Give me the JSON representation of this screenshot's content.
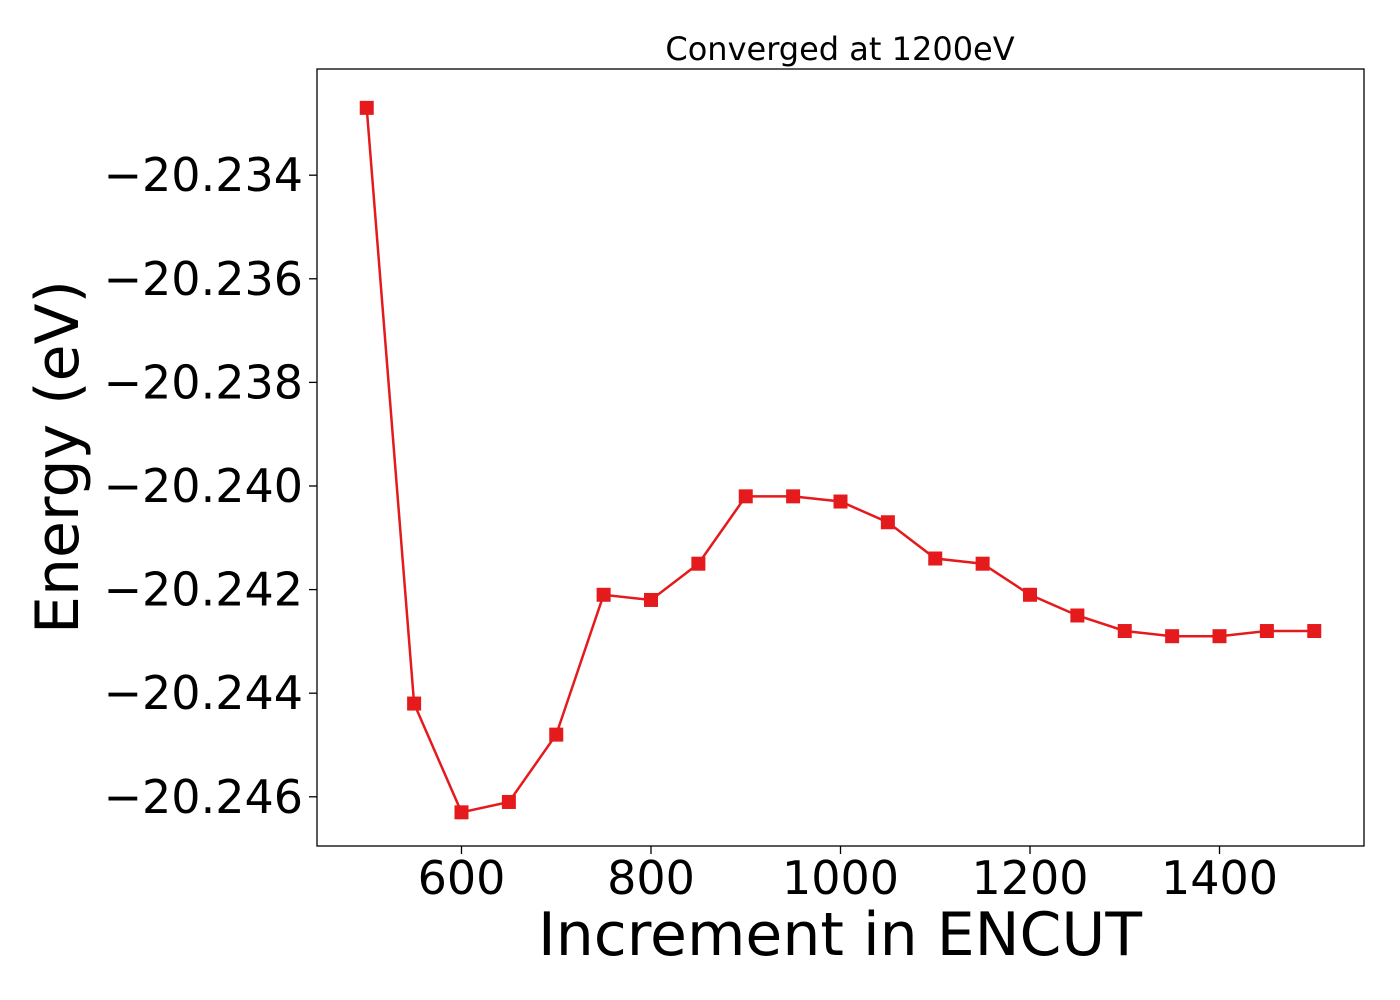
{
  "chart_data": {
    "type": "line",
    "title": "Converged at 1200eV",
    "xlabel": "Increment in ENCUT",
    "ylabel": "Energy (eV)",
    "xlim": [
      447.5,
      1552.5
    ],
    "ylim": [
      -20.24695,
      -20.23195
    ],
    "xticks": [
      {
        "value": 600,
        "label": "600"
      },
      {
        "value": 800,
        "label": "800"
      },
      {
        "value": 1000,
        "label": "1000"
      },
      {
        "value": 1200,
        "label": "1200"
      },
      {
        "value": 1400,
        "label": "1400"
      }
    ],
    "yticks": [
      {
        "value": -20.234,
        "label": "−20.234"
      },
      {
        "value": -20.236,
        "label": "−20.236"
      },
      {
        "value": -20.238,
        "label": "−20.238"
      },
      {
        "value": -20.24,
        "label": "−20.240"
      },
      {
        "value": -20.242,
        "label": "−20.242"
      },
      {
        "value": -20.244,
        "label": "−20.244"
      },
      {
        "value": -20.246,
        "label": "−20.246"
      }
    ],
    "grid": false,
    "legend": "none",
    "series": [
      {
        "color": "#e41a1c",
        "marker": "square",
        "x": [
          500,
          550,
          600,
          650,
          700,
          750,
          800,
          850,
          900,
          950,
          1000,
          1050,
          1100,
          1150,
          1200,
          1250,
          1300,
          1350,
          1400,
          1450,
          1500
        ],
        "y": [
          -20.2327,
          -20.2442,
          -20.2463,
          -20.2461,
          -20.2448,
          -20.2421,
          -20.2422,
          -20.2415,
          -20.2402,
          -20.2402,
          -20.2403,
          -20.2407,
          -20.2414,
          -20.2415,
          -20.2421,
          -20.2425,
          -20.2428,
          -20.2429,
          -20.2429,
          -20.2428,
          -20.2428
        ]
      }
    ]
  }
}
